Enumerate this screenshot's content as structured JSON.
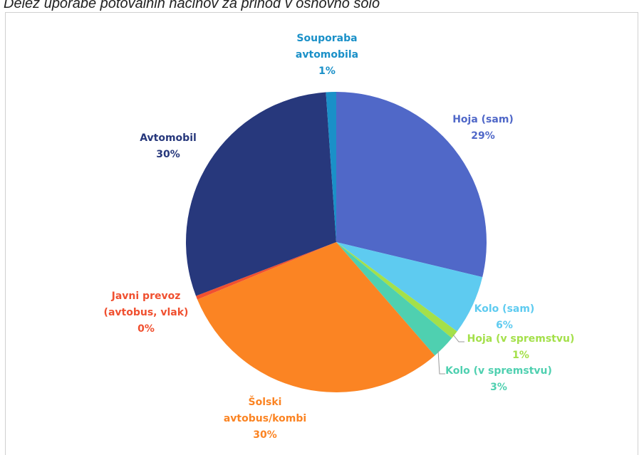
{
  "chart_data": {
    "type": "pie",
    "title": "Delež uporabe potovalnih načinov za prihod v osnovno šolo",
    "categories": [
      "Hoja (sam)",
      "Kolo (sam)",
      "Hoja (v spremstvu)",
      "Kolo (v spremstvu)",
      "Šolski\navtobus/kombi",
      "Javni prevoz\n(avtobus, vlak)",
      "Avtomobil",
      "Souporaba\navtomobila"
    ],
    "values": [
      28.8,
      6.4,
      0.9,
      2.6,
      30.2,
      0.4,
      29.8,
      1.1
    ],
    "value_labels": [
      "29%",
      "6%",
      "1%",
      "3%",
      "30%",
      "0%",
      "30%",
      "1%"
    ],
    "colors": [
      "#5068c8",
      "#5ecbf0",
      "#a4e04a",
      "#4fd0b0",
      "#fb8423",
      "#f05030",
      "#27387c",
      "#1a90c8"
    ]
  }
}
